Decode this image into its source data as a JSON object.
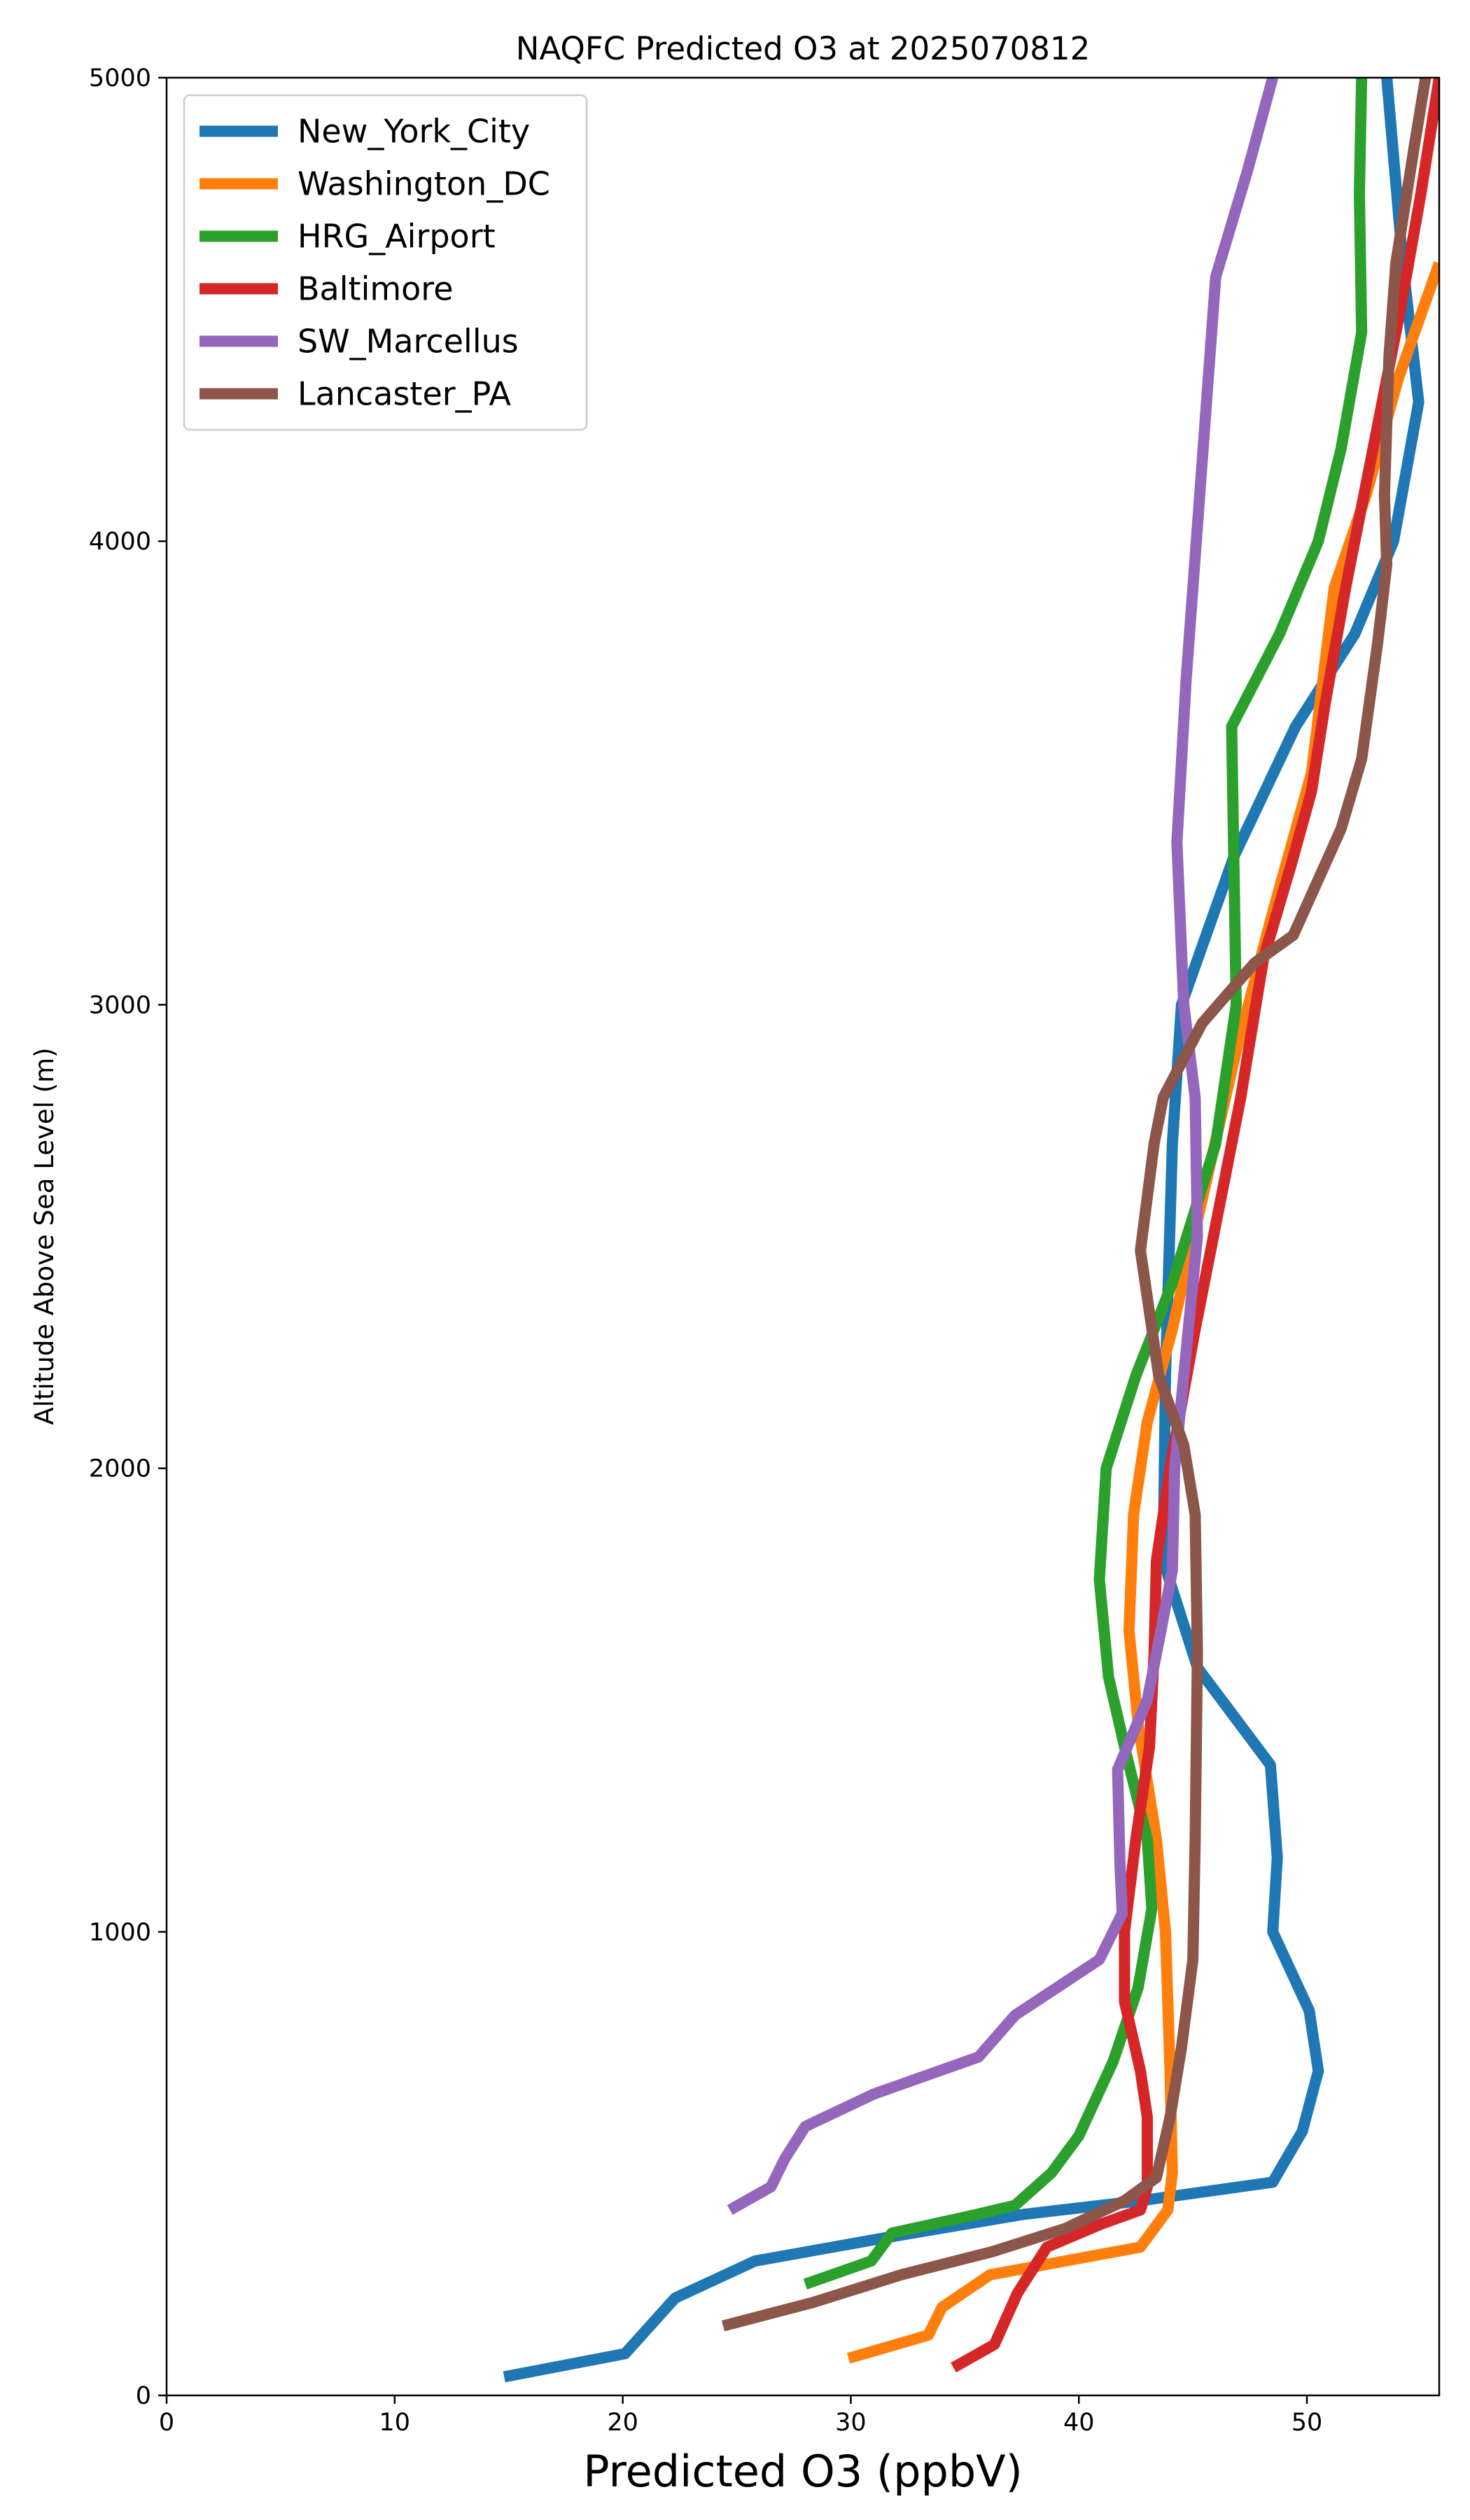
{
  "chart_data": {
    "type": "line",
    "title": "NAQFC Predicted O3 at 2025070812",
    "xlabel": "Predicted O3 (ppbV)",
    "ylabel": "Altitude Above Sea Level (m)",
    "xlim": [
      0,
      55.8
    ],
    "ylim": [
      0,
      5000
    ],
    "xticks": [
      0,
      10,
      20,
      30,
      40,
      50
    ],
    "yticks": [
      0,
      1000,
      2000,
      3000,
      4000,
      5000
    ],
    "grid": false,
    "legend_position": "upper-left",
    "series": [
      {
        "name": "New_York_City",
        "color": "#1f77b4",
        "points": [
          [
            14.8,
            40
          ],
          [
            20.1,
            90
          ],
          [
            22.3,
            210
          ],
          [
            25.8,
            290
          ],
          [
            31.5,
            340
          ],
          [
            37.5,
            390
          ],
          [
            42.7,
            420
          ],
          [
            48.5,
            460
          ],
          [
            49.8,
            570
          ],
          [
            50.5,
            700
          ],
          [
            50.1,
            830
          ],
          [
            48.5,
            1000
          ],
          [
            48.7,
            1160
          ],
          [
            48.4,
            1360
          ],
          [
            45.2,
            1570
          ],
          [
            43.9,
            1770
          ],
          [
            43.7,
            1810
          ],
          [
            43.8,
            2200
          ],
          [
            44.1,
            2700
          ],
          [
            44.5,
            3000
          ],
          [
            46.8,
            3320
          ],
          [
            49.5,
            3600
          ],
          [
            52.1,
            3800
          ],
          [
            53.8,
            4000
          ],
          [
            54.9,
            4300
          ],
          [
            54.2,
            4600
          ],
          [
            53.5,
            5000
          ]
        ]
      },
      {
        "name": "Washington_DC",
        "color": "#ff7f0e",
        "points": [
          [
            29.9,
            80
          ],
          [
            33.4,
            130
          ],
          [
            34.0,
            190
          ],
          [
            36.1,
            260
          ],
          [
            42.7,
            320
          ],
          [
            43.9,
            400
          ],
          [
            44.1,
            480
          ],
          [
            44.0,
            700
          ],
          [
            43.8,
            1000
          ],
          [
            43.4,
            1200
          ],
          [
            42.6,
            1450
          ],
          [
            42.2,
            1650
          ],
          [
            42.4,
            1900
          ],
          [
            43.0,
            2100
          ],
          [
            44.1,
            2300
          ],
          [
            45.5,
            2600
          ],
          [
            46.9,
            2900
          ],
          [
            48.5,
            3200
          ],
          [
            50.2,
            3500
          ],
          [
            51.2,
            3900
          ],
          [
            52.6,
            4100
          ],
          [
            54.0,
            4350
          ],
          [
            55.8,
            4600
          ]
        ]
      },
      {
        "name": "HRG_Airport",
        "color": "#2ca02c",
        "points": [
          [
            28.0,
            240
          ],
          [
            30.9,
            290
          ],
          [
            31.8,
            350
          ],
          [
            35.5,
            390
          ],
          [
            37.2,
            410
          ],
          [
            38.8,
            480
          ],
          [
            40.0,
            560
          ],
          [
            41.5,
            720
          ],
          [
            42.6,
            880
          ],
          [
            43.2,
            1050
          ],
          [
            43.0,
            1200
          ],
          [
            42.0,
            1400
          ],
          [
            41.3,
            1550
          ],
          [
            40.9,
            1760
          ],
          [
            41.2,
            2000
          ],
          [
            42.5,
            2200
          ],
          [
            44.1,
            2400
          ],
          [
            46.0,
            2700
          ],
          [
            46.9,
            3000
          ],
          [
            46.7,
            3600
          ],
          [
            48.8,
            3800
          ],
          [
            50.5,
            4000
          ],
          [
            51.5,
            4200
          ],
          [
            52.4,
            4450
          ],
          [
            52.3,
            4750
          ],
          [
            52.4,
            5000
          ]
        ]
      },
      {
        "name": "Baltimore",
        "color": "#d62728",
        "points": [
          [
            34.5,
            60
          ],
          [
            36.3,
            110
          ],
          [
            37.3,
            220
          ],
          [
            38.6,
            320
          ],
          [
            41.0,
            370
          ],
          [
            42.7,
            400
          ],
          [
            43.0,
            450
          ],
          [
            43.0,
            600
          ],
          [
            42.7,
            700
          ],
          [
            42.0,
            850
          ],
          [
            42.0,
            1000
          ],
          [
            42.5,
            1200
          ],
          [
            43.1,
            1400
          ],
          [
            43.3,
            1600
          ],
          [
            43.4,
            1800
          ],
          [
            44.0,
            2000
          ],
          [
            45.1,
            2300
          ],
          [
            46.3,
            2600
          ],
          [
            47.1,
            2800
          ],
          [
            48.1,
            3100
          ],
          [
            49.3,
            3300
          ],
          [
            50.2,
            3460
          ],
          [
            50.8,
            3650
          ],
          [
            51.7,
            3900
          ],
          [
            52.9,
            4200
          ],
          [
            54.1,
            4500
          ],
          [
            55.0,
            4750
          ],
          [
            55.8,
            5000
          ]
        ]
      },
      {
        "name": "SW_Marcellus",
        "color": "#9467bd",
        "points": [
          [
            24.7,
            400
          ],
          [
            26.5,
            450
          ],
          [
            27.1,
            510
          ],
          [
            28.0,
            580
          ],
          [
            31.0,
            650
          ],
          [
            35.6,
            730
          ],
          [
            37.2,
            820
          ],
          [
            40.9,
            940
          ],
          [
            41.9,
            1040
          ],
          [
            41.8,
            1150
          ],
          [
            41.7,
            1350
          ],
          [
            43.0,
            1500
          ],
          [
            43.6,
            1650
          ],
          [
            44.1,
            1780
          ],
          [
            44.2,
            2000
          ],
          [
            45.2,
            2500
          ],
          [
            45.1,
            2800
          ],
          [
            44.6,
            3000
          ],
          [
            44.3,
            3350
          ],
          [
            44.7,
            3700
          ],
          [
            45.3,
            4100
          ],
          [
            46.0,
            4570
          ],
          [
            47.4,
            4800
          ],
          [
            48.5,
            5000
          ]
        ]
      },
      {
        "name": "Lancaster_PA",
        "color": "#8c564b",
        "points": [
          [
            24.4,
            150
          ],
          [
            28.3,
            200
          ],
          [
            32.2,
            260
          ],
          [
            36.2,
            310
          ],
          [
            39.4,
            360
          ],
          [
            42.0,
            420
          ],
          [
            43.4,
            470
          ],
          [
            44.0,
            600
          ],
          [
            44.5,
            750
          ],
          [
            45.0,
            940
          ],
          [
            45.1,
            1200
          ],
          [
            45.2,
            1600
          ],
          [
            45.1,
            1900
          ],
          [
            44.6,
            2050
          ],
          [
            43.5,
            2200
          ],
          [
            42.7,
            2470
          ],
          [
            43.3,
            2700
          ],
          [
            43.7,
            2800
          ],
          [
            45.4,
            2960
          ],
          [
            47.7,
            3090
          ],
          [
            49.4,
            3150
          ],
          [
            51.5,
            3380
          ],
          [
            52.4,
            3530
          ],
          [
            53.1,
            3780
          ],
          [
            53.5,
            3950
          ],
          [
            53.4,
            4100
          ],
          [
            53.6,
            4400
          ],
          [
            53.9,
            4600
          ],
          [
            54.7,
            4850
          ],
          [
            55.2,
            5000
          ]
        ]
      }
    ]
  }
}
